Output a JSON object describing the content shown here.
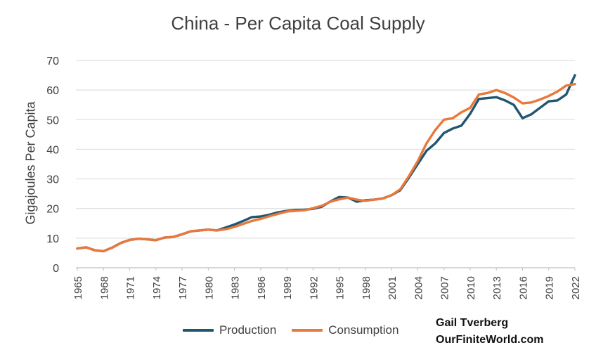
{
  "chart_data": {
    "type": "line",
    "title": "China - Per Capita Coal Supply",
    "xlabel": "",
    "ylabel": "Gigajoules Per Capita",
    "ylim": [
      0,
      70
    ],
    "yticks": [
      0,
      10,
      20,
      30,
      40,
      50,
      60,
      70
    ],
    "x": [
      1965,
      1966,
      1967,
      1968,
      1969,
      1970,
      1971,
      1972,
      1973,
      1974,
      1975,
      1976,
      1977,
      1978,
      1979,
      1980,
      1981,
      1982,
      1983,
      1984,
      1985,
      1986,
      1987,
      1988,
      1989,
      1990,
      1991,
      1992,
      1993,
      1994,
      1995,
      1996,
      1997,
      1998,
      1999,
      2000,
      2001,
      2002,
      2003,
      2004,
      2005,
      2006,
      2007,
      2008,
      2009,
      2010,
      2011,
      2012,
      2013,
      2014,
      2015,
      2016,
      2017,
      2018,
      2019,
      2020,
      2021,
      2022
    ],
    "xtick_labels": [
      "1965",
      "1968",
      "1971",
      "1974",
      "1977",
      "1980",
      "1983",
      "1986",
      "1989",
      "1992",
      "1995",
      "1998",
      "2001",
      "2004",
      "2007",
      "2010",
      "2013",
      "2016",
      "2019",
      "2022"
    ],
    "grid": true,
    "legend_position": "bottom",
    "series": [
      {
        "name": "Production",
        "color": "#1f5670",
        "values": [
          6.5,
          6.9,
          5.9,
          5.6,
          6.8,
          8.4,
          9.4,
          9.8,
          9.6,
          9.3,
          10.2,
          10.4,
          11.3,
          12.3,
          12.6,
          12.9,
          12.6,
          13.6,
          14.6,
          15.8,
          17.1,
          17.3,
          17.9,
          18.7,
          19.2,
          19.5,
          19.6,
          19.9,
          20.6,
          22.4,
          23.9,
          23.7,
          22.3,
          22.8,
          23.0,
          23.4,
          24.5,
          26.2,
          30.5,
          35.0,
          39.5,
          42.0,
          45.5,
          47.0,
          48.0,
          52.0,
          57.0,
          57.3,
          57.6,
          56.5,
          55.0,
          50.5,
          51.8,
          54.0,
          56.2,
          56.5,
          58.5,
          65.0
        ]
      },
      {
        "name": "Consumption",
        "color": "#e8783b",
        "values": [
          6.5,
          6.9,
          5.9,
          5.6,
          6.8,
          8.4,
          9.4,
          9.8,
          9.6,
          9.3,
          10.2,
          10.4,
          11.3,
          12.3,
          12.6,
          12.9,
          12.6,
          13.0,
          13.8,
          14.8,
          15.8,
          16.5,
          17.4,
          18.2,
          19.0,
          19.2,
          19.4,
          20.1,
          20.9,
          22.3,
          23.1,
          23.7,
          23.0,
          22.6,
          23.0,
          23.4,
          24.5,
          26.5,
          31.0,
          36.0,
          42.0,
          46.5,
          50.0,
          50.5,
          52.5,
          54.0,
          58.5,
          59.0,
          60.0,
          59.0,
          57.5,
          55.5,
          55.8,
          56.8,
          58.0,
          59.5,
          61.5,
          62.0
        ]
      }
    ]
  },
  "credit": {
    "line1": "Gail Tverberg",
    "line2": "OurFiniteWorld.com"
  }
}
